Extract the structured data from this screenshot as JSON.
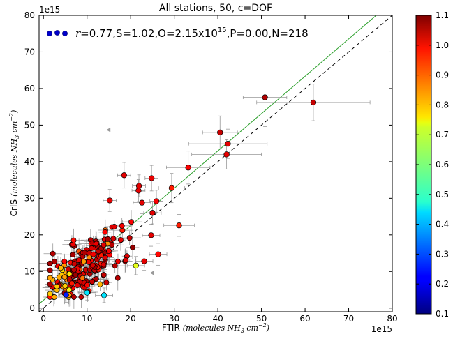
{
  "chart_data": {
    "type": "scatter",
    "title": "All stations, 50, c=DOF",
    "xlabel": "FTIR",
    "xlabel_units": "(molecules NH",
    "xlabel_units_sub": "3",
    "xlabel_units_tail": " cm",
    "xlabel_units_sup": "−2",
    "xlabel_units_close": ")",
    "ylabel": "CrIS",
    "ylabel_units": "(molecules NH",
    "ylabel_units_sub": "3",
    "ylabel_units_tail": " cm",
    "ylabel_units_sup": "−2",
    "ylabel_units_close": ")",
    "x_offset_label": "1e15",
    "y_offset_label": "1e15",
    "xlim": [
      -1,
      80
    ],
    "ylim": [
      -1,
      80
    ],
    "xticks": [
      0,
      10,
      20,
      30,
      40,
      50,
      60,
      70,
      80
    ],
    "yticks": [
      0,
      10,
      20,
      30,
      40,
      50,
      60,
      70,
      80
    ],
    "legend": {
      "placement": "top-left",
      "r_label": "r",
      "stats_text": "=0.77,S=1.02,O=2.15x10",
      "stats_sup": "15",
      "stats_tail": ",P=0.00,N=218"
    },
    "fit_line": {
      "slope": 1.02,
      "intercept": 2.15,
      "color": "#2ca02c"
    },
    "identity_line": {
      "style": "dashed",
      "color": "#000000"
    },
    "colorbar": {
      "range": [
        0.1,
        1.1
      ],
      "ticks": [
        "1.1",
        "1.0",
        "0.9",
        "0.8",
        "0.7",
        "0.6",
        "0.5",
        "0.4",
        "0.3",
        "0.2",
        "0.1"
      ],
      "colormap": "jet"
    },
    "points_with_errors": [
      {
        "x": 50.8,
        "y": 57.6,
        "c": 1.05,
        "xe": 5.0,
        "ye": 8.0
      },
      {
        "x": 61.9,
        "y": 56.2,
        "c": 1.03,
        "xe": 13.0,
        "ye": 5.0
      },
      {
        "x": 40.5,
        "y": 48.0,
        "c": 1.03,
        "xe": 4.0,
        "ye": 4.5
      },
      {
        "x": 42.3,
        "y": 44.9,
        "c": 1.0,
        "xe": 9.0,
        "ye": 4.0
      },
      {
        "x": 42.0,
        "y": 42.0,
        "c": 1.0,
        "xe": 8.0,
        "ye": 4.0
      },
      {
        "x": 33.2,
        "y": 38.4,
        "c": 0.98,
        "xe": 5.0,
        "ye": 4.5
      },
      {
        "x": 18.5,
        "y": 36.3,
        "c": 1.0,
        "xe": 1.5,
        "ye": 3.5
      },
      {
        "x": 24.8,
        "y": 35.5,
        "c": 1.0,
        "xe": 1.5,
        "ye": 3.5
      },
      {
        "x": 21.9,
        "y": 33.4,
        "c": 1.0,
        "xe": 1.5,
        "ye": 3.0
      },
      {
        "x": 29.4,
        "y": 32.8,
        "c": 0.95,
        "xe": 3.0,
        "ye": 4.0
      },
      {
        "x": 21.8,
        "y": 32.1,
        "c": 1.0,
        "xe": 1.5,
        "ye": 3.0
      },
      {
        "x": 22.6,
        "y": 28.8,
        "c": 1.0,
        "xe": 2.0,
        "ye": 3.0
      },
      {
        "x": 15.2,
        "y": 29.4,
        "c": 1.0,
        "xe": 1.5,
        "ye": 3.0
      },
      {
        "x": 25.9,
        "y": 29.2,
        "c": 0.98,
        "xe": 1.5,
        "ye": 3.0
      },
      {
        "x": 25.0,
        "y": 26.0,
        "c": 1.0,
        "xe": 2.0,
        "ye": 3.0
      },
      {
        "x": 31.1,
        "y": 22.6,
        "c": 0.95,
        "xe": 3.5,
        "ye": 3.0
      },
      {
        "x": 24.7,
        "y": 19.9,
        "c": 1.0,
        "xe": 2.0,
        "ye": 3.0
      },
      {
        "x": 26.3,
        "y": 14.7,
        "c": 0.97,
        "xe": 2.0,
        "ye": 3.0
      },
      {
        "x": 23.1,
        "y": 12.8,
        "c": 1.0,
        "xe": 2.0,
        "ye": 2.5
      },
      {
        "x": 21.2,
        "y": 11.6,
        "c": 0.7,
        "xe": 2.0,
        "ye": 2.5
      },
      {
        "x": 13.9,
        "y": 3.5,
        "c": 0.45,
        "xe": 2.0,
        "ye": 2.0
      },
      {
        "x": 10.0,
        "y": 4.2,
        "c": 0.45,
        "xe": 2.0,
        "ye": 2.0
      },
      {
        "x": 5.2,
        "y": 3.6,
        "c": 0.25,
        "xe": 1.5,
        "ye": 2.0
      }
    ],
    "markers_gray": [
      {
        "x": 15.0,
        "y": 48.7
      },
      {
        "x": 25.0,
        "y": 9.6
      }
    ]
  }
}
